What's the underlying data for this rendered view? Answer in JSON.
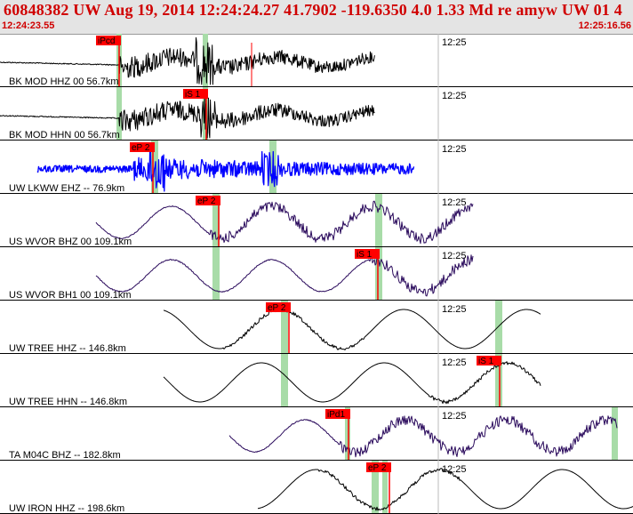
{
  "header": {
    "title": "60848382 UW Aug 19, 2014 12:24:24.27   41.7902 -119.6350  4.0 1.33 Md re amyw UW 01   4",
    "time_start": "12:24:23.55",
    "time_end": "12:25:16.56"
  },
  "colors": {
    "header_bg": "#e4e4e4",
    "header_text": "#d00000",
    "pick_box": "#ff0000",
    "pick_line": "#ff0000",
    "window_band": "#a8dca8",
    "trace_black": "#000000",
    "trace_blue": "#0000ff",
    "trace_purple": "#2a0a5c"
  },
  "traces": [
    {
      "label": "BK MOD HHZ 00 56.7km",
      "tick_label": "12:25",
      "color": "black",
      "style": "noisy",
      "pick": "iPcd"
    },
    {
      "label": "BK MOD HHN 00 56.7km",
      "tick_label": "12:25",
      "color": "black",
      "style": "noisy",
      "pick": "iS 1"
    },
    {
      "label": "UW LKWW EHZ -- 76.9km",
      "tick_label": "12:25",
      "color": "blue",
      "style": "noisy",
      "pick": "eP 2"
    },
    {
      "label": "US WVOR BHZ 00 109.1km",
      "tick_label": "12:25",
      "color": "purple",
      "style": "wave",
      "pick": "eP 2"
    },
    {
      "label": "US WVOR BH1 00 109.1km",
      "tick_label": "12:25",
      "color": "purple",
      "style": "wave",
      "pick": "iS 1"
    },
    {
      "label": "UW TREE HHZ -- 146.8km",
      "tick_label": "12:25",
      "color": "black",
      "style": "smooth",
      "pick": "eP 2"
    },
    {
      "label": "UW TREE HHN -- 146.8km",
      "tick_label": "12:25",
      "color": "black",
      "style": "smooth",
      "pick": "iS 1"
    },
    {
      "label": "TA M04C BHZ -- 182.8km",
      "tick_label": "12:25",
      "color": "purple",
      "style": "wave",
      "pick": "iPd1"
    },
    {
      "label": "UW IRON HHZ -- 198.6km",
      "tick_label": "12:25",
      "color": "black",
      "style": "smooth",
      "pick": "eP 2"
    }
  ]
}
